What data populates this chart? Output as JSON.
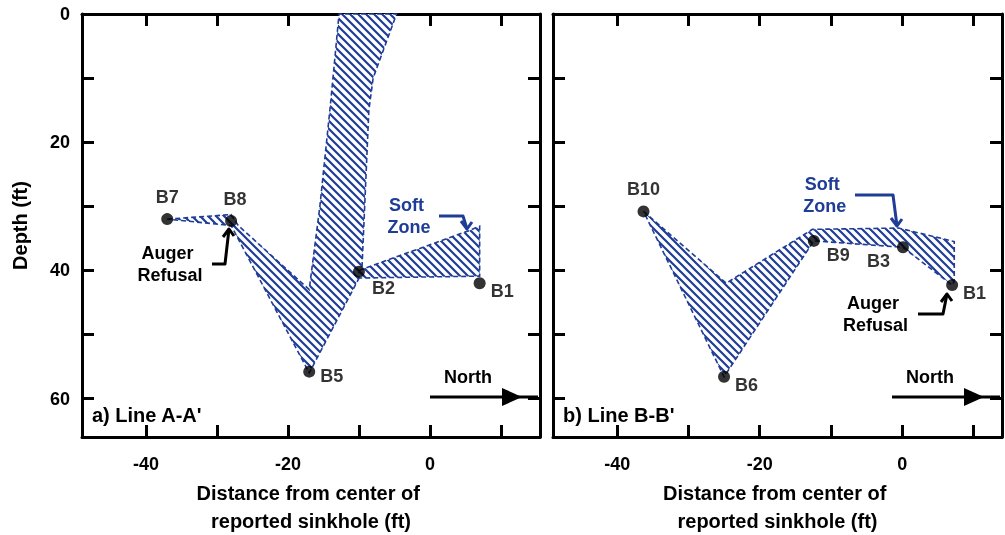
{
  "chart_data": [
    {
      "type": "scatter",
      "xlabel": "Distance from center of reported sinkhole (ft)",
      "ylabel": "Depth (ft)",
      "xlim": [
        -49,
        15.5
      ],
      "ylim": [
        66,
        0
      ],
      "xticks": [
        -40,
        {
          "value": -30,
          "label": null
        },
        -20,
        {
          "value": -10,
          "label": null
        },
        0,
        {
          "value": 10,
          "label": null
        }
      ],
      "yticks": [
        0,
        {
          "value": 10,
          "label": null
        },
        20,
        {
          "value": 30,
          "label": null
        },
        40,
        {
          "value": 50,
          "label": null
        },
        60
      ],
      "line_style": "dashed",
      "annotations": [
        {
          "text": "Auger Refusal",
          "x": -28,
          "y": 32.3
        },
        {
          "text": "Soft Zone",
          "x": 5.5,
          "y": 33.8
        },
        "a) Line A-A'",
        "North"
      ],
      "series": [
        {
          "type": "area",
          "color": "#1f3c96",
          "x": [
            -37,
            -28,
            -27,
            -17,
            -15.5,
            -14,
            -12.8,
            -4.7,
            -8,
            -8.6,
            -9.6,
            -17,
            -28
          ],
          "values": [
            32,
            31.3,
            33,
            43,
            30,
            14,
            0,
            0,
            10,
            15,
            40.4,
            56,
            33
          ]
        },
        {
          "type": "area",
          "color": "#1f3c96",
          "x": [
            -10,
            5.5,
            7,
            7,
            -10
          ],
          "values": [
            40,
            33.8,
            33.1,
            40.9,
            41.2
          ]
        },
        {
          "type": "scatter",
          "marker": "circle",
          "color": "#000000",
          "x": [
            -37,
            -28,
            -17,
            -10,
            7
          ],
          "values": [
            32,
            32.3,
            55.8,
            40.2,
            42
          ],
          "value_labels": [
            "B7",
            "B8",
            "B5",
            "B2",
            "B1"
          ]
        }
      ]
    },
    {
      "type": "scatter",
      "xlabel": "Distance from center of reported sinkhole (ft)",
      "xlim": [
        -49,
        14
      ],
      "ylim": [
        66,
        0
      ],
      "tick_labels": "x",
      "xticks": [
        -40,
        {
          "value": -30,
          "label": null
        },
        -20,
        {
          "value": -10,
          "label": null
        },
        0,
        {
          "value": 10,
          "label": null
        }
      ],
      "yticks": [
        0,
        {
          "value": 10,
          "label": null
        },
        20,
        {
          "value": 30,
          "label": null
        },
        40,
        {
          "value": 50,
          "label": null
        },
        60
      ],
      "line_style": "dashed",
      "annotations": [
        {
          "text": "Auger Refusal",
          "x": 6.5,
          "y": 42.5
        },
        {
          "text": "Soft Zone",
          "x": -0.5,
          "y": 33.4
        },
        "b) Line B-B'",
        "North"
      ],
      "series": [
        {
          "type": "area",
          "color": "#1f3c96",
          "x": [
            -36.3,
            -24.7,
            -12.6,
            -0.5,
            7.3,
            7.3,
            7,
            0.1,
            -12.4,
            -25,
            -36.3
          ],
          "values": [
            30.8,
            42,
            33.6,
            33.4,
            35.5,
            41.7,
            42.3,
            36.4,
            35.4,
            56.6,
            30.8
          ]
        },
        {
          "type": "scatter",
          "marker": "circle",
          "color": "#000000",
          "x": [
            -36.3,
            -25,
            -12.4,
            0.1,
            7
          ],
          "values": [
            30.8,
            56.6,
            35.4,
            36.4,
            42.3
          ],
          "value_labels": [
            "B10",
            "B6",
            "B9",
            "B3",
            "B1"
          ]
        }
      ]
    }
  ]
}
